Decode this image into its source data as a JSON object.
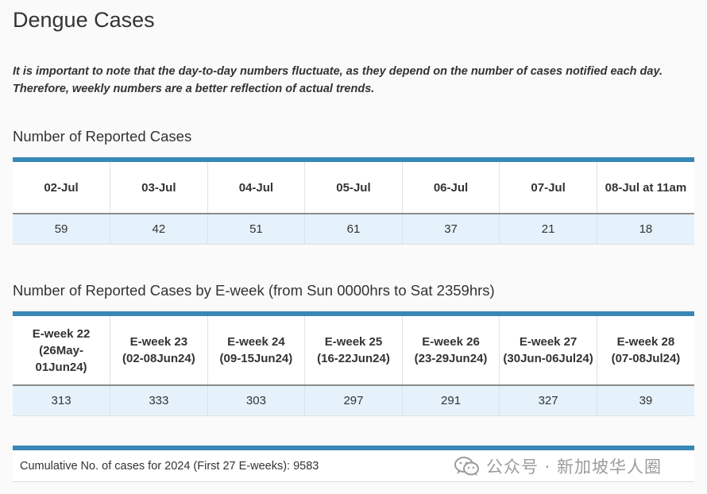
{
  "page": {
    "title": "Dengue Cases",
    "note_line1": "It is important to note that the day-to-day numbers fluctuate, as they depend on the number of cases notified each day.",
    "note_line2": "Therefore, weekly numbers are a better reflection of actual trends."
  },
  "daily": {
    "title": "Number of Reported Cases",
    "headers": [
      "02-Jul",
      "03-Jul",
      "04-Jul",
      "05-Jul",
      "06-Jul",
      "07-Jul",
      "08-Jul at 11am"
    ],
    "values": [
      "59",
      "42",
      "51",
      "61",
      "37",
      "21",
      "18"
    ]
  },
  "weekly": {
    "title": "Number of Reported Cases by E-week (from Sun 0000hrs to Sat 2359hrs)",
    "headers": [
      {
        "week": "E-week 22",
        "range": "(26May-01Jun24)"
      },
      {
        "week": "E-week 23",
        "range": "(02-08Jun24)"
      },
      {
        "week": "E-week 24",
        "range": "(09-15Jun24)"
      },
      {
        "week": "E-week 25",
        "range": "(16-22Jun24)"
      },
      {
        "week": "E-week 26",
        "range": "(23-29Jun24)"
      },
      {
        "week": "E-week 27",
        "range": "(30Jun-06Jul24)"
      },
      {
        "week": "E-week 28",
        "range": "(07-08Jul24)"
      }
    ],
    "values": [
      "313",
      "333",
      "303",
      "297",
      "291",
      "327",
      "39"
    ]
  },
  "cumulative": {
    "text": "Cumulative No. of cases for 2024 (First 27 E-weeks): 9583"
  },
  "watermark": {
    "icon": "wechat-icon",
    "text": "公众号 · 新加坡华人圈"
  },
  "colors": {
    "accent_bar": "#3987b7",
    "value_row_bg": "#e5f2fb",
    "text": "#333333"
  }
}
